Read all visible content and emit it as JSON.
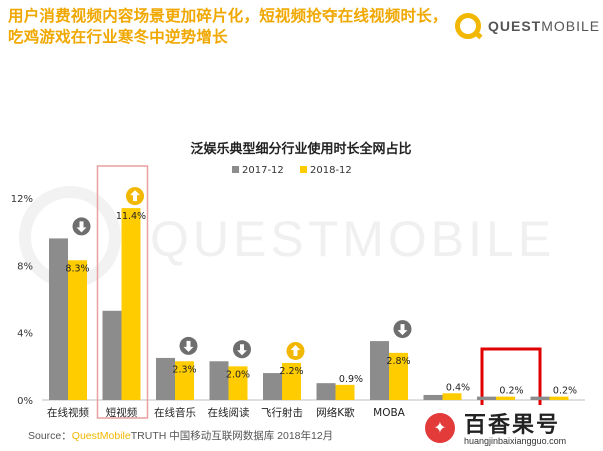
{
  "headline": {
    "line1": "用户消费视频内容场景更加碎片化，短视频抢夺在线视频时长，",
    "line2": "吃鸡游戏在行业寒冬中逆势增长"
  },
  "brand": {
    "part1": "QUEST",
    "part2": "MOBILE"
  },
  "watermark_text": "QUESTMOBILE",
  "source": {
    "prefix": "Source：",
    "brand": "QuestMobile",
    "rest": "TRUTH 中国移动互联网数据库 2018年12月"
  },
  "badge": {
    "name": "百香果号",
    "url": "huangjinbaixiangguo.com"
  },
  "colors": {
    "series_2017": "#8c8c8c",
    "series_2018": "#ffcc00",
    "headline": "#f0a800",
    "arrow_down": "#6e6e6e",
    "arrow_up": "#f2b700",
    "highlight_box": "#e8a0a0",
    "highlight_box_strong": "#e00000"
  },
  "chart_data": {
    "type": "bar",
    "title": "泛娱乐典型细分行业使用时长全网占比",
    "categories": [
      "在线视频",
      "短视频",
      "在线音乐",
      "在线阅读",
      "飞行射击",
      "网络K歌",
      "MOBA",
      "",
      "",
      ""
    ],
    "series": [
      {
        "name": "2017-12",
        "values": [
          9.6,
          5.3,
          2.5,
          2.3,
          1.6,
          1.0,
          3.5,
          0.3,
          0.2,
          0.2
        ]
      },
      {
        "name": "2018-12",
        "values": [
          8.3,
          11.4,
          2.3,
          2.0,
          2.2,
          0.9,
          2.8,
          0.4,
          0.2,
          0.2
        ]
      }
    ],
    "data_labels": [
      "8.3%",
      "11.4%",
      "2.3%",
      "2.0%",
      "2.2%",
      "0.9%",
      "2.8%",
      "0.4%",
      "0.2%",
      "0.2%"
    ],
    "trend_icons": [
      "down",
      "up",
      "down",
      "down",
      "up",
      "",
      "down",
      "",
      "",
      ""
    ],
    "ylim": [
      0,
      12
    ],
    "yticks": [
      0,
      4,
      8,
      12
    ],
    "ytick_labels": [
      "0%",
      "4%",
      "8%",
      "12%"
    ],
    "grid": false,
    "legend_position": "top",
    "highlighted_categories": [
      1,
      8
    ],
    "xlabel": "",
    "ylabel": ""
  }
}
